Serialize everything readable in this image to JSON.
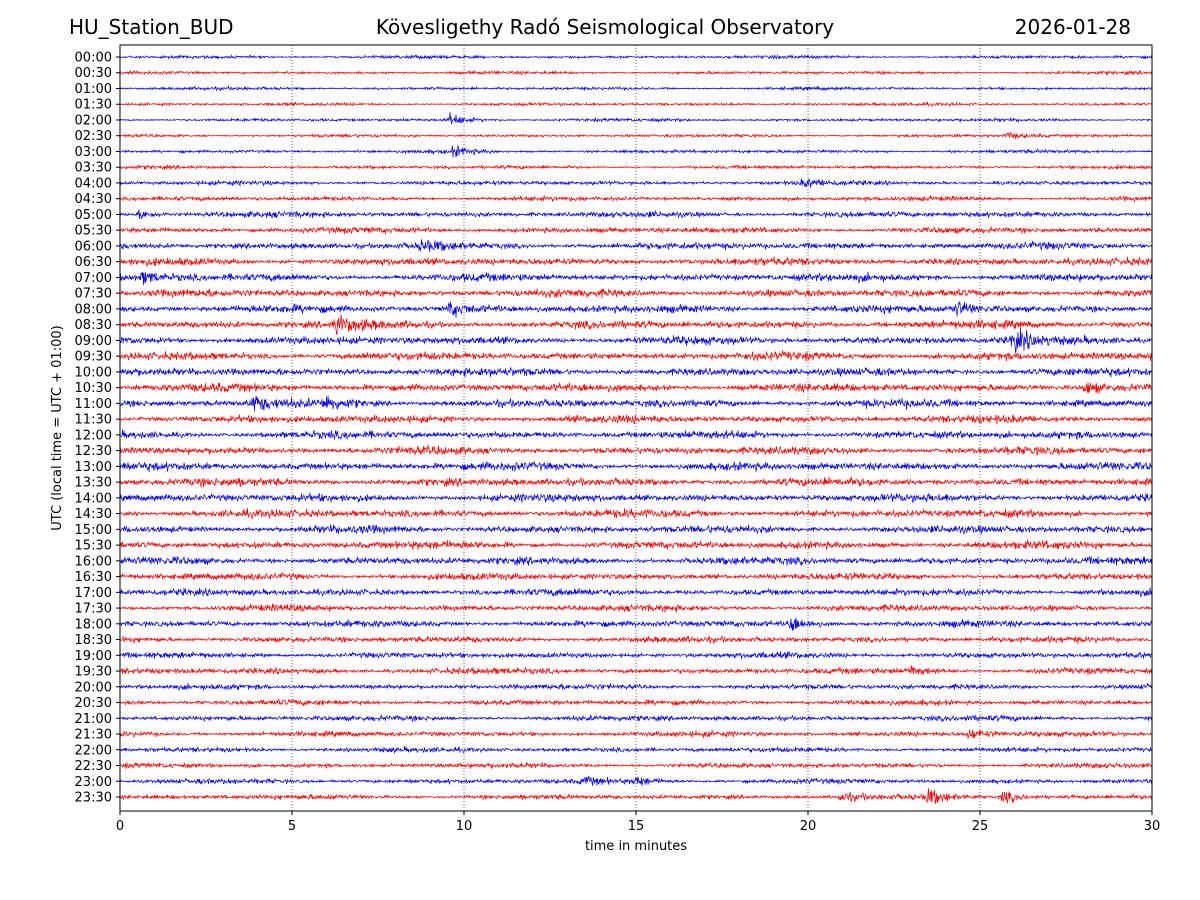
{
  "header": {
    "station": "HU_Station_BUD",
    "observatory": "Kövesligethy Radó Seismological Observatory",
    "date": "2026-01-28"
  },
  "chart_data": {
    "type": "line",
    "title": "Kövesligethy Radó Seismological Observatory",
    "xlabel": "time in minutes",
    "ylabel": "UTC (local time = UTC + 01:00)",
    "xlim": [
      0,
      30
    ],
    "xticks": [
      0,
      5,
      10,
      15,
      20,
      25,
      30
    ],
    "grid": "vertical dotted at x ticks",
    "colors": [
      "#0000ff",
      "#ff0000"
    ],
    "rows": [
      "00:00",
      "00:30",
      "01:00",
      "01:30",
      "02:00",
      "02:30",
      "03:00",
      "03:30",
      "04:00",
      "04:30",
      "05:00",
      "05:30",
      "06:00",
      "06:30",
      "07:00",
      "07:30",
      "08:00",
      "08:30",
      "09:00",
      "09:30",
      "10:00",
      "10:30",
      "11:00",
      "11:30",
      "12:00",
      "12:30",
      "13:00",
      "13:30",
      "14:00",
      "14:30",
      "15:00",
      "15:30",
      "16:00",
      "16:30",
      "17:00",
      "17:30",
      "18:00",
      "18:30",
      "19:00",
      "19:30",
      "20:00",
      "20:30",
      "21:00",
      "21:30",
      "22:00",
      "22:30",
      "23:00",
      "23:30"
    ],
    "noise_level": [
      2,
      2,
      2,
      2,
      2,
      2,
      2.2,
      2.2,
      2.8,
      3,
      3.8,
      3.8,
      4.5,
      4.8,
      5,
      5,
      5,
      5.2,
      5.2,
      5.2,
      5.2,
      5.2,
      5.2,
      5,
      5,
      5,
      5.2,
      5.2,
      5.2,
      5.2,
      5,
      5,
      5,
      4.5,
      4.5,
      4.2,
      4.2,
      4,
      3.8,
      4,
      3.5,
      3.5,
      3.5,
      3.5,
      3.2,
      3.2,
      3.2,
      3.2
    ],
    "events": [
      {
        "row": 4,
        "minute": 9.6,
        "amplitude": 8
      },
      {
        "row": 5,
        "minute": 25.8,
        "amplitude": 4
      },
      {
        "row": 6,
        "minute": 9.7,
        "amplitude": 6
      },
      {
        "row": 8,
        "minute": 19.9,
        "amplitude": 5
      },
      {
        "row": 10,
        "minute": 0.6,
        "amplitude": 6
      },
      {
        "row": 12,
        "minute": 8.8,
        "amplitude": 6
      },
      {
        "row": 14,
        "minute": 0.7,
        "amplitude": 7
      },
      {
        "row": 16,
        "minute": 9.6,
        "amplitude": 9
      },
      {
        "row": 16,
        "minute": 24.3,
        "amplitude": 10
      },
      {
        "row": 17,
        "minute": 6.3,
        "amplitude": 12
      },
      {
        "row": 18,
        "minute": 26.0,
        "amplitude": 14
      },
      {
        "row": 21,
        "minute": 28.1,
        "amplitude": 8
      },
      {
        "row": 22,
        "minute": 3.9,
        "amplitude": 9
      },
      {
        "row": 22,
        "minute": 6.0,
        "amplitude": 8
      },
      {
        "row": 36,
        "minute": 19.5,
        "amplitude": 10
      },
      {
        "row": 39,
        "minute": 23.0,
        "amplitude": 6
      },
      {
        "row": 43,
        "minute": 24.7,
        "amplitude": 6
      },
      {
        "row": 46,
        "minute": 13.5,
        "amplitude": 5
      },
      {
        "row": 46,
        "minute": 15.0,
        "amplitude": 6
      },
      {
        "row": 47,
        "minute": 21.0,
        "amplitude": 6
      },
      {
        "row": 47,
        "minute": 23.5,
        "amplitude": 9
      },
      {
        "row": 47,
        "minute": 25.7,
        "amplitude": 8
      }
    ]
  }
}
